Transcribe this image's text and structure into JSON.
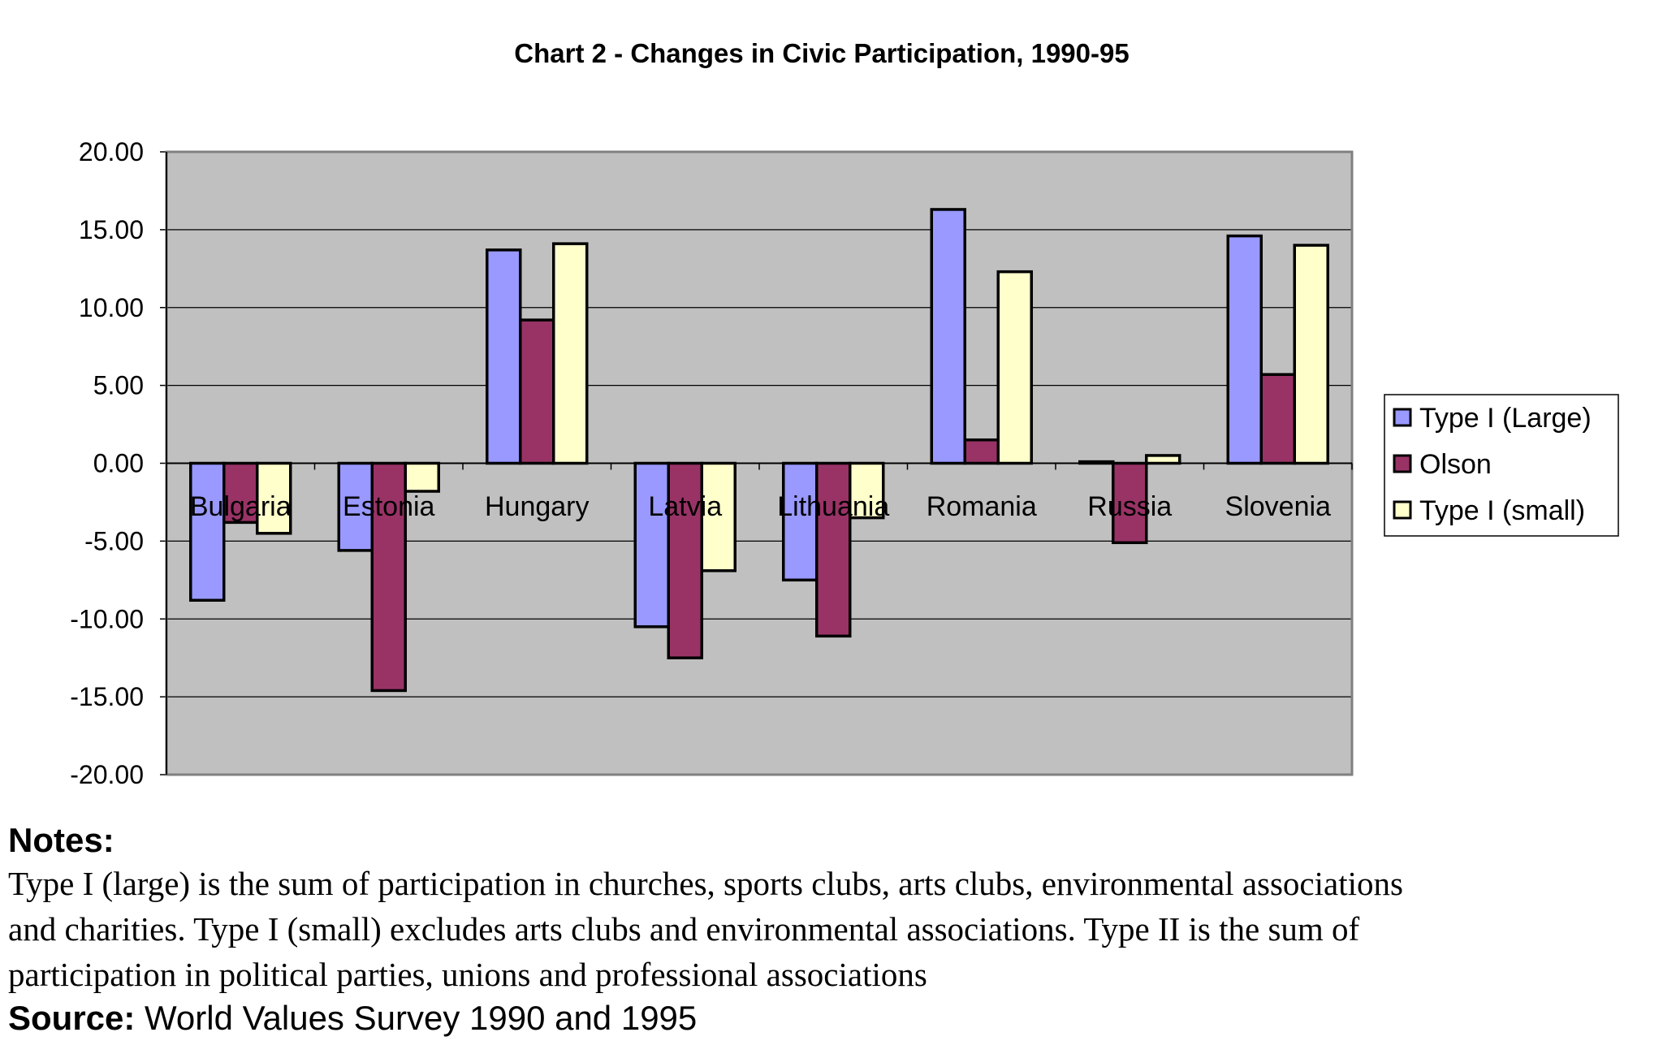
{
  "chart_data": {
    "type": "bar",
    "title": "Chart 2 - Changes in Civic Participation, 1990-95",
    "categories": [
      "Bulgaria",
      "Estonia",
      "Hungary",
      "Latvia",
      "Lithuania",
      "Romania",
      "Russia",
      "Slovenia"
    ],
    "series": [
      {
        "name": "Type I (Large)",
        "color": "#9999ff",
        "values": [
          -8.8,
          -5.6,
          13.7,
          -10.5,
          -7.5,
          16.3,
          0.1,
          14.6
        ]
      },
      {
        "name": "Olson",
        "color": "#993366",
        "values": [
          -3.8,
          -14.6,
          9.2,
          -12.5,
          -11.1,
          1.5,
          -5.1,
          5.7
        ]
      },
      {
        "name": "Type I (small)",
        "color": "#ffffcc",
        "values": [
          -4.5,
          -1.8,
          14.1,
          -6.9,
          -3.5,
          12.3,
          0.5,
          14.0
        ]
      }
    ],
    "ylim": [
      -20,
      20
    ],
    "yticks": [
      "20.00",
      "15.00",
      "10.00",
      "5.00",
      "0.00",
      "-5.00",
      "-10.00",
      "-15.00",
      "-20.00"
    ],
    "ytick_values": [
      20,
      15,
      10,
      5,
      0,
      -5,
      -10,
      -15,
      -20
    ],
    "grid": true,
    "plot_background": "#c0c0c0",
    "legend_position": "right"
  },
  "notes": {
    "heading": "Notes:",
    "body": "Type I (large) is the sum of participation in churches, sports clubs, arts clubs, environmental associations and charities. Type I (small) excludes arts clubs and environmental associations. Type II is the sum of participation in political parties, unions and professional associations",
    "source_label": "Source:",
    "source_text": " World Values Survey 1990 and 1995"
  }
}
